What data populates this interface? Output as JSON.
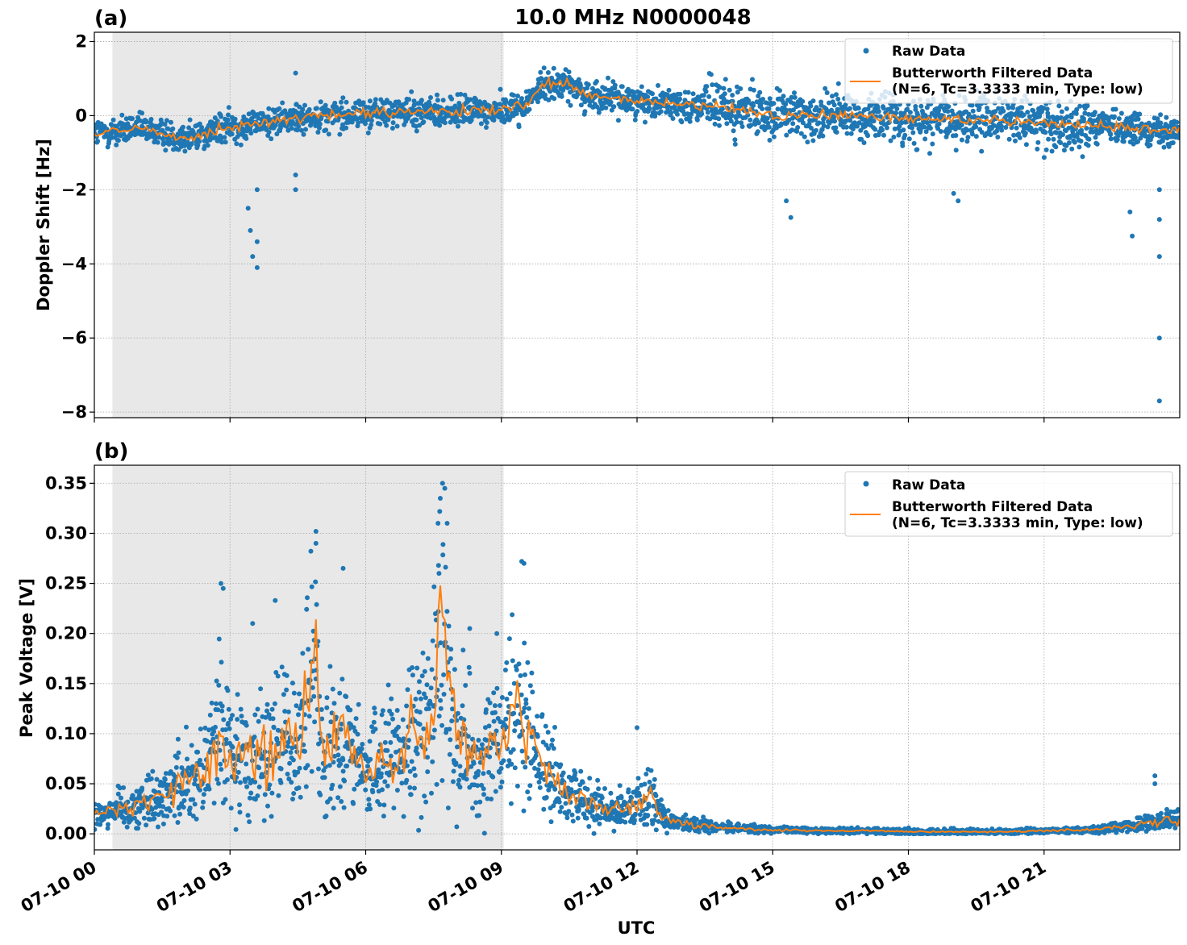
{
  "figure": {
    "title": "10.0 MHz N0000048",
    "xlabel": "UTC"
  },
  "colors": {
    "raw": "#1f77b4",
    "filtered": "#ff7f0e",
    "night_shade": "#e8e8e8",
    "grid": "#b0b0b0"
  },
  "chart_data": [
    {
      "type": "scatter",
      "panel_label": "(a)",
      "ylabel": "Doppler Shift [Hz]",
      "xlim_hours": [
        0,
        24
      ],
      "ylim": [
        -8.15,
        2.25
      ],
      "yticks": [
        2,
        0,
        -2,
        -4,
        -6,
        -8
      ],
      "ytick_labels": [
        "2",
        "0",
        "−2",
        "−4",
        "−6",
        "−8"
      ],
      "shaded_span_hours": [
        0.4,
        9.05
      ],
      "grid": true,
      "legend_position": "top-right",
      "series": [
        {
          "name": "Raw Data",
          "style": "points",
          "x": [
            0,
            1,
            2,
            3,
            4,
            5,
            6,
            7,
            8,
            9,
            9.5,
            10,
            10.5,
            11,
            11.5,
            12,
            13,
            14,
            15,
            16,
            17,
            18,
            19,
            20,
            21,
            22,
            23,
            24
          ],
          "y": [
            -0.5,
            -0.35,
            -0.6,
            -0.3,
            -0.15,
            0.0,
            0.05,
            0.1,
            0.1,
            0.15,
            0.25,
            0.9,
            0.8,
            0.5,
            0.45,
            0.4,
            0.3,
            0.2,
            0.0,
            0.0,
            0.0,
            -0.1,
            -0.1,
            -0.1,
            -0.2,
            -0.25,
            -0.35,
            -0.4
          ]
        },
        {
          "name": "Butterworth Filtered Data\n(N=6, Tc=3.3333 min, Type: low)",
          "style": "line",
          "x": [
            0,
            1,
            2,
            3,
            4,
            5,
            6,
            7,
            8,
            9,
            9.5,
            10,
            10.5,
            11,
            11.5,
            12,
            13,
            14,
            15,
            16,
            17,
            18,
            19,
            20,
            21,
            22,
            23,
            24
          ],
          "y": [
            -0.5,
            -0.35,
            -0.6,
            -0.3,
            -0.15,
            0.0,
            0.05,
            0.1,
            0.1,
            0.15,
            0.25,
            0.9,
            0.8,
            0.5,
            0.45,
            0.4,
            0.3,
            0.2,
            0.0,
            0.0,
            0.0,
            -0.1,
            -0.1,
            -0.1,
            -0.2,
            -0.25,
            -0.35,
            -0.4
          ]
        }
      ],
      "outliers": {
        "x": [
          3.4,
          3.45,
          3.5,
          3.6,
          3.6,
          3.6,
          4.45,
          4.45,
          4.45,
          15.3,
          15.4,
          19.0,
          19.1,
          22.9,
          22.95,
          23.55,
          23.55,
          23.55,
          23.55,
          23.55
        ],
        "y": [
          -2.5,
          -3.1,
          -3.8,
          -2.0,
          -3.4,
          -4.1,
          1.15,
          -1.6,
          -2.0,
          -2.3,
          -2.75,
          -2.1,
          -2.3,
          -2.6,
          -3.25,
          -2.0,
          -2.8,
          -3.8,
          -6.0,
          -7.7
        ]
      }
    },
    {
      "type": "scatter",
      "panel_label": "(b)",
      "ylabel": "Peak Voltage [V]",
      "xlim_hours": [
        0,
        24
      ],
      "ylim": [
        -0.016,
        0.368
      ],
      "yticks": [
        0.0,
        0.05,
        0.1,
        0.15,
        0.2,
        0.25,
        0.3,
        0.35
      ],
      "ytick_labels": [
        "0.00",
        "0.05",
        "0.10",
        "0.15",
        "0.20",
        "0.25",
        "0.30",
        "0.35"
      ],
      "shaded_span_hours": [
        0.4,
        9.05
      ],
      "grid": true,
      "legend_position": "top-right",
      "x_ticks_hours": [
        0,
        3,
        6,
        9,
        12,
        15,
        18,
        21
      ],
      "x_tick_labels": [
        "07-10 00",
        "07-10 03",
        "07-10 06",
        "07-10 09",
        "07-10 12",
        "07-10 15",
        "07-10 18",
        "07-10 21"
      ],
      "series": [
        {
          "name": "Raw Data",
          "style": "points",
          "x": [
            0,
            0.5,
            1,
            1.5,
            2,
            2.5,
            2.8,
            3,
            3.5,
            4,
            4.5,
            4.9,
            5,
            5.5,
            6,
            6.5,
            7,
            7.5,
            7.7,
            8,
            8.5,
            9,
            9.5,
            10,
            10.5,
            11,
            11.5,
            12,
            12.3,
            12.6,
            13,
            13.5,
            14,
            15,
            16,
            17,
            18,
            19,
            20,
            21,
            22,
            22.5,
            23,
            23.5,
            24
          ],
          "y": [
            0.02,
            0.025,
            0.03,
            0.04,
            0.055,
            0.06,
            0.12,
            0.08,
            0.07,
            0.09,
            0.09,
            0.17,
            0.09,
            0.1,
            0.06,
            0.075,
            0.09,
            0.13,
            0.19,
            0.1,
            0.07,
            0.09,
            0.12,
            0.06,
            0.04,
            0.03,
            0.025,
            0.03,
            0.04,
            0.015,
            0.01,
            0.008,
            0.006,
            0.004,
            0.003,
            0.003,
            0.002,
            0.002,
            0.002,
            0.003,
            0.004,
            0.006,
            0.008,
            0.012,
            0.015
          ]
        },
        {
          "name": "Butterworth Filtered Data\n(N=6, Tc=3.3333 min, Type: low)",
          "style": "line",
          "x": [
            0,
            0.5,
            1,
            1.5,
            2,
            2.5,
            2.8,
            3,
            3.5,
            4,
            4.5,
            4.9,
            5,
            5.5,
            6,
            6.5,
            7,
            7.5,
            7.7,
            8,
            8.5,
            9,
            9.5,
            10,
            10.5,
            11,
            11.5,
            12,
            12.3,
            12.6,
            13,
            13.5,
            14,
            15,
            16,
            17,
            18,
            19,
            20,
            21,
            22,
            22.5,
            23,
            23.5,
            24
          ],
          "y": [
            0.02,
            0.025,
            0.03,
            0.04,
            0.055,
            0.06,
            0.12,
            0.08,
            0.07,
            0.09,
            0.09,
            0.17,
            0.09,
            0.1,
            0.06,
            0.075,
            0.09,
            0.13,
            0.19,
            0.1,
            0.07,
            0.09,
            0.12,
            0.06,
            0.04,
            0.03,
            0.025,
            0.03,
            0.04,
            0.015,
            0.01,
            0.008,
            0.006,
            0.004,
            0.003,
            0.003,
            0.002,
            0.002,
            0.002,
            0.003,
            0.004,
            0.006,
            0.008,
            0.012,
            0.015
          ]
        }
      ],
      "peaks": {
        "x": [
          2.8,
          2.85,
          3.5,
          4.0,
          4.9,
          4.9,
          5.5,
          7.6,
          7.65,
          7.7,
          7.75,
          7.8,
          8.3,
          8.9,
          9.45,
          9.5,
          12.0,
          23.45,
          23.45
        ],
        "y": [
          0.25,
          0.245,
          0.21,
          0.233,
          0.302,
          0.29,
          0.265,
          0.31,
          0.335,
          0.35,
          0.345,
          0.31,
          0.205,
          0.2,
          0.272,
          0.27,
          0.106,
          0.058,
          0.05
        ]
      }
    }
  ]
}
